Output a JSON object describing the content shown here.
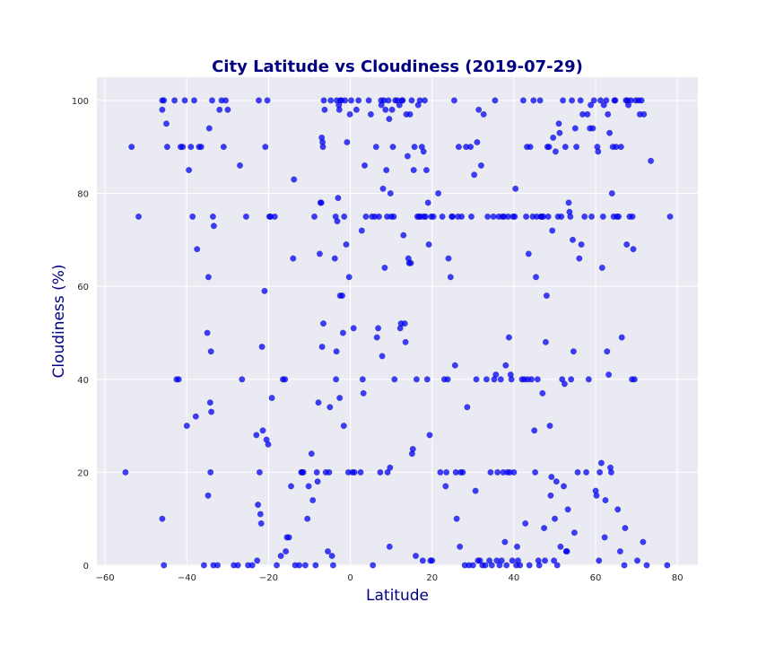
{
  "chart_data": {
    "type": "scatter",
    "title": "City Latitude vs Cloudiness (2019-07-29)",
    "xlabel": "Latitude",
    "ylabel": "Cloudiness (%)",
    "xlim": [
      -62,
      85
    ],
    "ylim": [
      0,
      105
    ],
    "xticks": [
      -60,
      -40,
      -20,
      0,
      20,
      40,
      60,
      80
    ],
    "yticks": [
      0,
      20,
      40,
      60,
      80,
      100
    ],
    "grid": true,
    "legend": "none",
    "colors": {
      "background": "#EAEAF2",
      "grid": "#FFFFFF",
      "marker": "#0000FF",
      "text": "#000080"
    },
    "points": [
      [
        -55,
        20
      ],
      [
        -53.5,
        90
      ],
      [
        -51.8,
        75
      ],
      [
        -46,
        98
      ],
      [
        -46,
        100
      ],
      [
        -45.6,
        100
      ],
      [
        -45,
        95
      ],
      [
        -44.8,
        90
      ],
      [
        -46,
        10
      ],
      [
        -45.6,
        0
      ],
      [
        -43,
        100
      ],
      [
        -42.5,
        40
      ],
      [
        -42,
        40
      ],
      [
        -41.5,
        90
      ],
      [
        -41,
        90
      ],
      [
        -40.5,
        100
      ],
      [
        -40,
        30
      ],
      [
        -39.5,
        85
      ],
      [
        -39,
        90
      ],
      [
        -38.6,
        75
      ],
      [
        -38.2,
        100
      ],
      [
        -37.8,
        32
      ],
      [
        -37.5,
        68
      ],
      [
        -37,
        90
      ],
      [
        -36.5,
        90
      ],
      [
        -35.8,
        0
      ],
      [
        -35,
        50
      ],
      [
        -34.8,
        15
      ],
      [
        -34.7,
        62
      ],
      [
        -34.5,
        94
      ],
      [
        -34.3,
        35
      ],
      [
        -34.2,
        20
      ],
      [
        -34.1,
        46
      ],
      [
        -34,
        33
      ],
      [
        -33.8,
        100
      ],
      [
        -33.6,
        75
      ],
      [
        -33.4,
        73
      ],
      [
        -33.5,
        0
      ],
      [
        -32.5,
        0
      ],
      [
        -32,
        98
      ],
      [
        -31.5,
        100
      ],
      [
        -31,
        90
      ],
      [
        -30.5,
        100
      ],
      [
        -30,
        98
      ],
      [
        -28.5,
        0
      ],
      [
        -27.5,
        0
      ],
      [
        -27,
        86
      ],
      [
        -26.5,
        40
      ],
      [
        -25.5,
        75
      ],
      [
        -25,
        0
      ],
      [
        -24,
        0
      ],
      [
        -23,
        28
      ],
      [
        -22.8,
        1
      ],
      [
        -22.6,
        13
      ],
      [
        -22.4,
        100
      ],
      [
        -22.2,
        20
      ],
      [
        -22,
        11
      ],
      [
        -21.8,
        9
      ],
      [
        -21.6,
        47
      ],
      [
        -21.4,
        29
      ],
      [
        -21,
        59
      ],
      [
        -20.8,
        90
      ],
      [
        -20.5,
        27
      ],
      [
        -20.3,
        100
      ],
      [
        -20.1,
        26
      ],
      [
        -19.8,
        75
      ],
      [
        -19.5,
        75
      ],
      [
        -19.2,
        36
      ],
      [
        -18.5,
        75
      ],
      [
        -18,
        0
      ],
      [
        -17,
        2
      ],
      [
        -16.5,
        40
      ],
      [
        -16,
        40
      ],
      [
        -15.8,
        3
      ],
      [
        -15.5,
        6
      ],
      [
        -15,
        6
      ],
      [
        -14.5,
        17
      ],
      [
        -14,
        66
      ],
      [
        -13.8,
        83
      ],
      [
        -13.5,
        0
      ],
      [
        -12.5,
        0
      ],
      [
        -12,
        20
      ],
      [
        -11.8,
        20
      ],
      [
        -11.5,
        20
      ],
      [
        -11,
        0
      ],
      [
        -10.5,
        10
      ],
      [
        -10.2,
        17
      ],
      [
        -9.5,
        24
      ],
      [
        -9.2,
        14
      ],
      [
        -8.8,
        75
      ],
      [
        -8.5,
        0
      ],
      [
        -8.2,
        20
      ],
      [
        -8,
        18
      ],
      [
        -7.8,
        35
      ],
      [
        -7.5,
        67
      ],
      [
        -7.3,
        78
      ],
      [
        -7.1,
        78
      ],
      [
        -7,
        92
      ],
      [
        -6.9,
        47
      ],
      [
        -6.8,
        91
      ],
      [
        -6.7,
        90
      ],
      [
        -6.6,
        52
      ],
      [
        -6.5,
        100
      ],
      [
        -6.3,
        98
      ],
      [
        -6,
        20
      ],
      [
        -5.5,
        3
      ],
      [
        -5.2,
        20
      ],
      [
        -5,
        34
      ],
      [
        -4.8,
        100
      ],
      [
        -4.5,
        2
      ],
      [
        -4.2,
        0
      ],
      [
        -3.8,
        66
      ],
      [
        -3.6,
        75
      ],
      [
        -3.5,
        40
      ],
      [
        -3.4,
        46
      ],
      [
        -3.3,
        100
      ],
      [
        -3.2,
        74
      ],
      [
        -3,
        79
      ],
      [
        -2.8,
        99
      ],
      [
        -2.7,
        98
      ],
      [
        -2.6,
        36
      ],
      [
        -2.5,
        58
      ],
      [
        -2.4,
        100
      ],
      [
        -2.2,
        100
      ],
      [
        -2,
        58
      ],
      [
        -1.8,
        50
      ],
      [
        -1.6,
        30
      ],
      [
        -1.5,
        75
      ],
      [
        -1.3,
        100
      ],
      [
        -1,
        69
      ],
      [
        -0.8,
        91
      ],
      [
        -0.5,
        20
      ],
      [
        -0.3,
        62
      ],
      [
        -0.1,
        97
      ],
      [
        0.2,
        100
      ],
      [
        0.5,
        20
      ],
      [
        0.8,
        51
      ],
      [
        1,
        20
      ],
      [
        1.5,
        98
      ],
      [
        2,
        100
      ],
      [
        2.5,
        20
      ],
      [
        2.8,
        72
      ],
      [
        3,
        40
      ],
      [
        3.2,
        37
      ],
      [
        3.5,
        86
      ],
      [
        3.8,
        75
      ],
      [
        4.5,
        100
      ],
      [
        5,
        97
      ],
      [
        5.3,
        75
      ],
      [
        5.5,
        0
      ],
      [
        6,
        75
      ],
      [
        6.3,
        90
      ],
      [
        6.5,
        49
      ],
      [
        6.8,
        51
      ],
      [
        7,
        75
      ],
      [
        7.3,
        20
      ],
      [
        7.5,
        100
      ],
      [
        7.6,
        99
      ],
      [
        7.8,
        45
      ],
      [
        8,
        81
      ],
      [
        8.2,
        100
      ],
      [
        8.4,
        64
      ],
      [
        8.6,
        98
      ],
      [
        8.8,
        85
      ],
      [
        9,
        75
      ],
      [
        9.1,
        20
      ],
      [
        9.3,
        100
      ],
      [
        9.5,
        96
      ],
      [
        9.6,
        4
      ],
      [
        9.7,
        21
      ],
      [
        9.8,
        80
      ],
      [
        10,
        75
      ],
      [
        10.2,
        98
      ],
      [
        10.4,
        90
      ],
      [
        10.6,
        75
      ],
      [
        10.8,
        40
      ],
      [
        11,
        100
      ],
      [
        11.5,
        100
      ],
      [
        12,
        99
      ],
      [
        12.2,
        51
      ],
      [
        12.4,
        52
      ],
      [
        12.6,
        100
      ],
      [
        12.8,
        100
      ],
      [
        13,
        71
      ],
      [
        13.3,
        52
      ],
      [
        13.5,
        48
      ],
      [
        13.7,
        97
      ],
      [
        14,
        88
      ],
      [
        14.2,
        66
      ],
      [
        14.4,
        65
      ],
      [
        14.6,
        97
      ],
      [
        14.8,
        65
      ],
      [
        15,
        100
      ],
      [
        15.1,
        24
      ],
      [
        15.3,
        25
      ],
      [
        15.5,
        85
      ],
      [
        15.7,
        90
      ],
      [
        16,
        2
      ],
      [
        16.2,
        40
      ],
      [
        16.4,
        75
      ],
      [
        16.6,
        99
      ],
      [
        16.8,
        75
      ],
      [
        17,
        100
      ],
      [
        17.2,
        75
      ],
      [
        17.5,
        90
      ],
      [
        17.7,
        1
      ],
      [
        17.9,
        89
      ],
      [
        18,
        75
      ],
      [
        18.2,
        100
      ],
      [
        18.4,
        75
      ],
      [
        18.6,
        85
      ],
      [
        18.8,
        40
      ],
      [
        19,
        78
      ],
      [
        19.2,
        69
      ],
      [
        19.4,
        28
      ],
      [
        19.6,
        1
      ],
      [
        19.8,
        75
      ],
      [
        20,
        1
      ],
      [
        20.3,
        75
      ],
      [
        21.5,
        80
      ],
      [
        22,
        20
      ],
      [
        22.5,
        75
      ],
      [
        23,
        40
      ],
      [
        23.3,
        17
      ],
      [
        23.5,
        20
      ],
      [
        23.8,
        40
      ],
      [
        24,
        66
      ],
      [
        24.5,
        62
      ],
      [
        24.8,
        75
      ],
      [
        25,
        75
      ],
      [
        25.4,
        100
      ],
      [
        25.6,
        43
      ],
      [
        25.8,
        20
      ],
      [
        26,
        10
      ],
      [
        26.3,
        75
      ],
      [
        26.5,
        90
      ],
      [
        26.8,
        4
      ],
      [
        27,
        20
      ],
      [
        27.2,
        75
      ],
      [
        27.5,
        20
      ],
      [
        28,
        0
      ],
      [
        28.3,
        90
      ],
      [
        28.6,
        34
      ],
      [
        29,
        0
      ],
      [
        29.4,
        90
      ],
      [
        29.6,
        75
      ],
      [
        30,
        0
      ],
      [
        30.3,
        84
      ],
      [
        30.6,
        16
      ],
      [
        30.8,
        40
      ],
      [
        31,
        91
      ],
      [
        31.2,
        1
      ],
      [
        31.4,
        98
      ],
      [
        31.7,
        1
      ],
      [
        32,
        86
      ],
      [
        32.3,
        0
      ],
      [
        32.6,
        97
      ],
      [
        33,
        0
      ],
      [
        33.3,
        40
      ],
      [
        33.6,
        75
      ],
      [
        34,
        1
      ],
      [
        34.3,
        20
      ],
      [
        34.6,
        0
      ],
      [
        35,
        75
      ],
      [
        35.2,
        40
      ],
      [
        35.4,
        100
      ],
      [
        35.6,
        41
      ],
      [
        35.8,
        1
      ],
      [
        36,
        20
      ],
      [
        36.3,
        75
      ],
      [
        36.5,
        0
      ],
      [
        36.8,
        40
      ],
      [
        37,
        1
      ],
      [
        37.2,
        75
      ],
      [
        37.4,
        20
      ],
      [
        37.6,
        75
      ],
      [
        37.8,
        5
      ],
      [
        38,
        43
      ],
      [
        38.2,
        0
      ],
      [
        38.4,
        20
      ],
      [
        38.6,
        75
      ],
      [
        38.8,
        49
      ],
      [
        39,
        20
      ],
      [
        39.2,
        41
      ],
      [
        39.4,
        40
      ],
      [
        39.6,
        1
      ],
      [
        39.8,
        75
      ],
      [
        40,
        20
      ],
      [
        40.2,
        75
      ],
      [
        40.4,
        81
      ],
      [
        40.6,
        0
      ],
      [
        40.8,
        4
      ],
      [
        41,
        1
      ],
      [
        41.5,
        0
      ],
      [
        42,
        40
      ],
      [
        42.3,
        100
      ],
      [
        42.6,
        40
      ],
      [
        42.8,
        9
      ],
      [
        43,
        75
      ],
      [
        43.2,
        90
      ],
      [
        43.4,
        40
      ],
      [
        43.6,
        67
      ],
      [
        43.8,
        0
      ],
      [
        44,
        90
      ],
      [
        44.3,
        40
      ],
      [
        44.6,
        75
      ],
      [
        44.8,
        100
      ],
      [
        45,
        29
      ],
      [
        45.2,
        20
      ],
      [
        45.4,
        62
      ],
      [
        45.6,
        75
      ],
      [
        45.8,
        40
      ],
      [
        46,
        1
      ],
      [
        46.2,
        0
      ],
      [
        46.4,
        100
      ],
      [
        46.6,
        75
      ],
      [
        46.8,
        75
      ],
      [
        47,
        37
      ],
      [
        47.2,
        75
      ],
      [
        47.4,
        8
      ],
      [
        47.6,
        1
      ],
      [
        47.8,
        48
      ],
      [
        48,
        58
      ],
      [
        48.2,
        90
      ],
      [
        48.4,
        75
      ],
      [
        48.6,
        90
      ],
      [
        48.8,
        30
      ],
      [
        49,
        15
      ],
      [
        49.2,
        19
      ],
      [
        49.4,
        72
      ],
      [
        49.6,
        92
      ],
      [
        49.8,
        1
      ],
      [
        50,
        10
      ],
      [
        50.2,
        89
      ],
      [
        50.4,
        18
      ],
      [
        50.6,
        0
      ],
      [
        50.8,
        75
      ],
      [
        51,
        95
      ],
      [
        51.2,
        93
      ],
      [
        51.4,
        4
      ],
      [
        51.6,
        75
      ],
      [
        51.8,
        40
      ],
      [
        52,
        100
      ],
      [
        52.2,
        17
      ],
      [
        52.4,
        39
      ],
      [
        52.6,
        90
      ],
      [
        52.8,
        3
      ],
      [
        53,
        3
      ],
      [
        53.2,
        12
      ],
      [
        53.4,
        78
      ],
      [
        53.6,
        76
      ],
      [
        53.8,
        75
      ],
      [
        54,
        40
      ],
      [
        54.2,
        100
      ],
      [
        54.4,
        70
      ],
      [
        54.6,
        46
      ],
      [
        54.8,
        7
      ],
      [
        55,
        94
      ],
      [
        55.3,
        90
      ],
      [
        55.6,
        20
      ],
      [
        56,
        66
      ],
      [
        56.3,
        100
      ],
      [
        56.5,
        69
      ],
      [
        56.8,
        97
      ],
      [
        57.3,
        75
      ],
      [
        57.7,
        20
      ],
      [
        58,
        97
      ],
      [
        58.3,
        40
      ],
      [
        58.6,
        94
      ],
      [
        58.8,
        99
      ],
      [
        59,
        75
      ],
      [
        59.3,
        94
      ],
      [
        59.6,
        100
      ],
      [
        60,
        16
      ],
      [
        60.2,
        15
      ],
      [
        60.4,
        90
      ],
      [
        60.6,
        89
      ],
      [
        60.8,
        1
      ],
      [
        61,
        20
      ],
      [
        61.2,
        100
      ],
      [
        61.4,
        22
      ],
      [
        61.6,
        64
      ],
      [
        61.8,
        75
      ],
      [
        62,
        99
      ],
      [
        62.2,
        6
      ],
      [
        62.4,
        14
      ],
      [
        62.6,
        100
      ],
      [
        62.8,
        46
      ],
      [
        63,
        97
      ],
      [
        63.2,
        41
      ],
      [
        63.4,
        93
      ],
      [
        63.6,
        21
      ],
      [
        63.8,
        20
      ],
      [
        64,
        80
      ],
      [
        64.2,
        90
      ],
      [
        64.4,
        75
      ],
      [
        64.6,
        100
      ],
      [
        64.8,
        100
      ],
      [
        65,
        90
      ],
      [
        65.2,
        75
      ],
      [
        65.4,
        12
      ],
      [
        65.6,
        75
      ],
      [
        66,
        3
      ],
      [
        66.2,
        90
      ],
      [
        66.4,
        49
      ],
      [
        67,
        0
      ],
      [
        67.2,
        8
      ],
      [
        67.4,
        100
      ],
      [
        67.6,
        69
      ],
      [
        67.8,
        100
      ],
      [
        68,
        99
      ],
      [
        68.3,
        75
      ],
      [
        68.6,
        100
      ],
      [
        68.9,
        40
      ],
      [
        69,
        75
      ],
      [
        69.2,
        68
      ],
      [
        69.5,
        40
      ],
      [
        69.8,
        100
      ],
      [
        70.2,
        1
      ],
      [
        70.5,
        100
      ],
      [
        70.8,
        97
      ],
      [
        71.2,
        100
      ],
      [
        71.6,
        5
      ],
      [
        71.8,
        97
      ],
      [
        72.5,
        0
      ],
      [
        73.5,
        87
      ],
      [
        77.5,
        0
      ],
      [
        78.2,
        75
      ]
    ]
  }
}
